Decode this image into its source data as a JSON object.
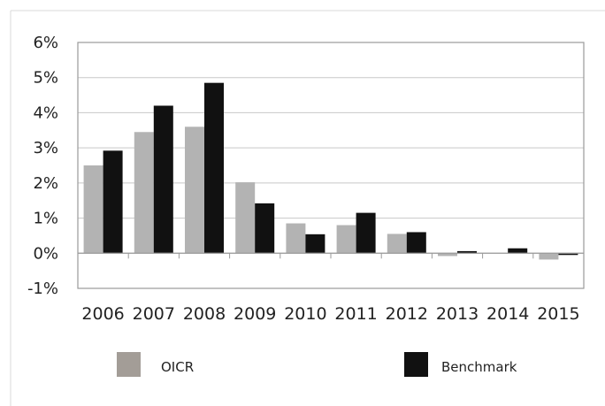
{
  "chart_data": {
    "type": "bar",
    "title": "",
    "xlabel": "",
    "ylabel": "",
    "categories": [
      "2006",
      "2007",
      "2008",
      "2009",
      "2010",
      "2011",
      "2012",
      "2013",
      "2014",
      "2015"
    ],
    "ylim": [
      -1,
      6
    ],
    "yticks": [
      -1,
      0,
      1,
      2,
      3,
      4,
      5,
      6
    ],
    "ytick_labels": [
      "-1%",
      "0%",
      "1%",
      "2%",
      "3%",
      "4%",
      "5%",
      "6%"
    ],
    "grid": true,
    "legend_position": "bottom",
    "series": [
      {
        "name": "OICR",
        "color": "#b3b3b3",
        "values": [
          2.5,
          3.45,
          3.6,
          2.02,
          0.85,
          0.8,
          0.55,
          -0.08,
          0.0,
          -0.18
        ]
      },
      {
        "name": "Benchmark",
        "color": "#111111",
        "values": [
          2.92,
          4.2,
          4.85,
          1.42,
          0.54,
          1.15,
          0.6,
          0.06,
          0.14,
          -0.05
        ]
      }
    ],
    "legend": [
      {
        "label": "OICR",
        "swatch_color": "#a39d97"
      },
      {
        "label": "Benchmark",
        "swatch_color": "#111111"
      }
    ]
  }
}
